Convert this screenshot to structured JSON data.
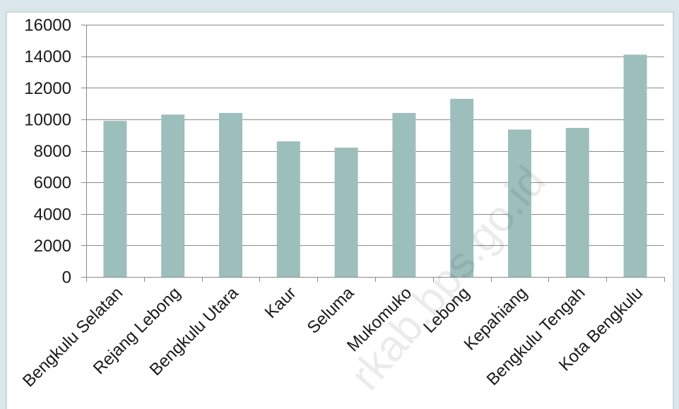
{
  "chart_data": {
    "type": "bar",
    "title": "",
    "xlabel": "",
    "ylabel": "",
    "categories": [
      "Bengkulu Selatan",
      "Rejang Lebong",
      "Bengkulu Utara",
      "Kaur",
      "Seluma",
      "Mukomuko",
      "Lebong",
      "Kepahiang",
      "Bengkulu Tengah",
      "Kota Bengkulu"
    ],
    "values": [
      9900,
      10300,
      10400,
      8600,
      8200,
      10400,
      11300,
      9350,
      9450,
      14100
    ],
    "ylim": [
      0,
      16000
    ],
    "yticks": [
      0,
      2000,
      4000,
      6000,
      8000,
      10000,
      12000,
      14000,
      16000
    ],
    "ytick_labels": [
      "0",
      "2000",
      "4000",
      "6000",
      "8000",
      "10000",
      "12000",
      "14000",
      "16000"
    ],
    "grid": true,
    "legend": "none",
    "bar_color": "#9dbfbc"
  },
  "watermark": "rkab.bps.go.id",
  "colors": {
    "frame": "#dbe7ea",
    "plot_background": "#ffffff",
    "grid": "#8a8a8a",
    "axis": "#8a8a8a"
  }
}
